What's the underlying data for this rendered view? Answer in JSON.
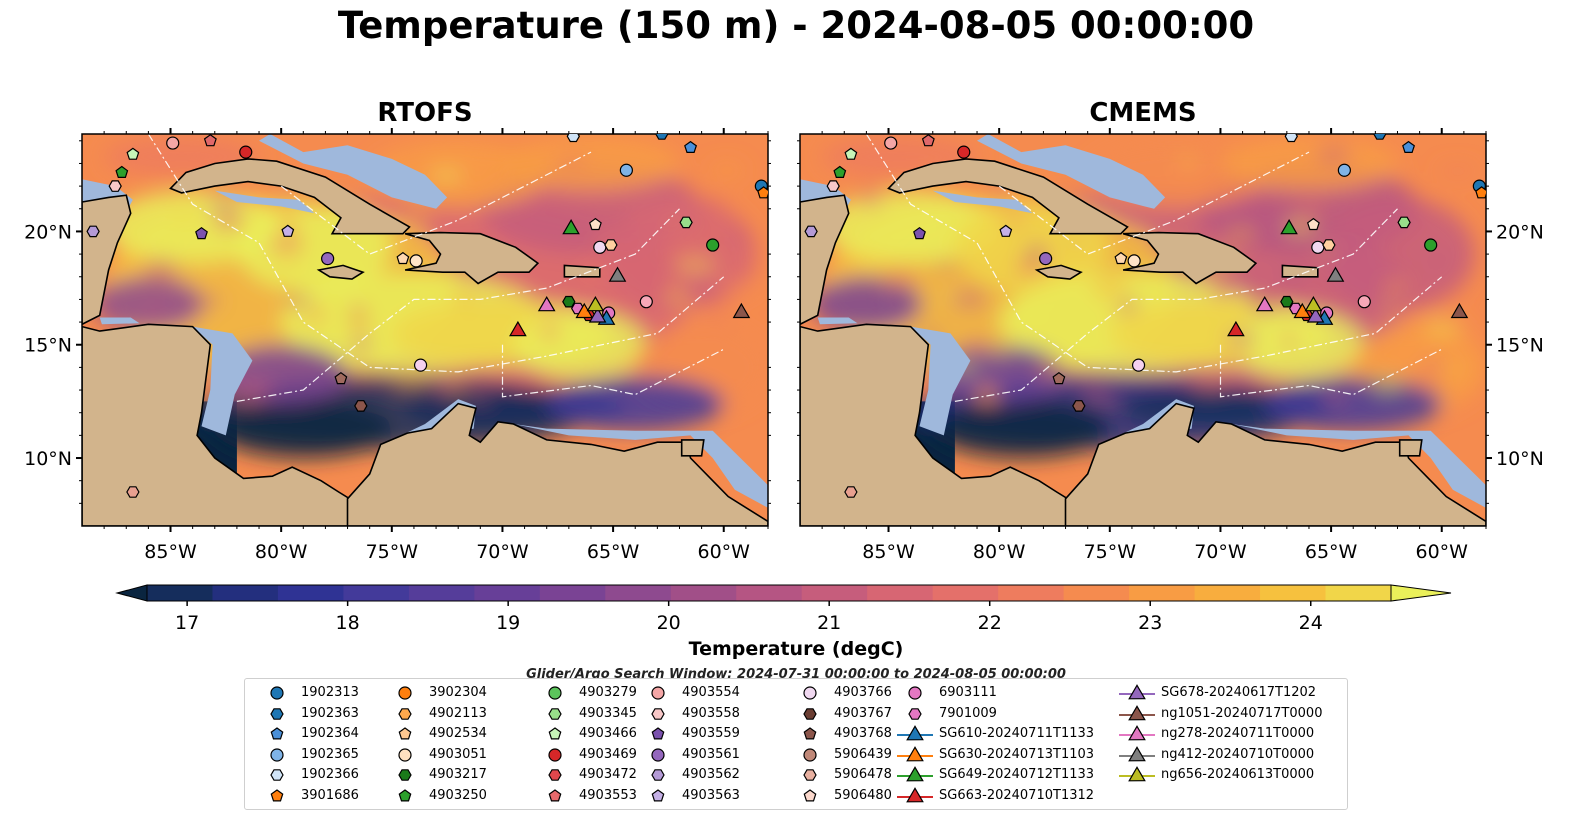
{
  "title": "Temperature (150 m) - 2024-08-05 00:00:00",
  "panels": [
    {
      "name": "rtofs",
      "title": "RTOFS"
    },
    {
      "name": "cmems",
      "title": "CMEMS"
    }
  ],
  "chart_data": {
    "type": "heatmap",
    "variable": "Temperature",
    "depth": "150 m",
    "time": "2024-08-05 00:00:00",
    "x_axis": {
      "ticks": [
        "85°W",
        "80°W",
        "75°W",
        "70°W",
        "65°W",
        "60°W"
      ],
      "tick_values": [
        -85,
        -80,
        -75,
        -70,
        -65,
        -60
      ],
      "range": [
        -89,
        -58
      ]
    },
    "y_axis": {
      "ticks": [
        "10°N",
        "15°N",
        "20°N"
      ],
      "tick_values": [
        10,
        15,
        20
      ],
      "range": [
        7,
        24.3
      ]
    },
    "colorbar": {
      "label": "Temperature (degC)",
      "range": [
        17,
        24.5
      ],
      "ticks": [
        "17",
        "18",
        "19",
        "20",
        "21",
        "22",
        "23",
        "24"
      ],
      "tick_values": [
        17,
        18,
        19,
        20,
        21,
        22,
        23,
        24
      ],
      "extend": "both",
      "colors": [
        "#0a2540",
        "#152d5c",
        "#232f7e",
        "#2f3394",
        "#433a9a",
        "#553d9a",
        "#673f98",
        "#7a4394",
        "#8e4a8f",
        "#a14f88",
        "#b55583",
        "#c65d7c",
        "#d76673",
        "#e4706a",
        "#ee7c5e",
        "#f58b4f",
        "#f89c44",
        "#f8ad3e",
        "#f6c13e",
        "#f1d649",
        "#eaf05a"
      ]
    },
    "regions": {
      "land": "#d2b48c",
      "shelf": "#9fb8dc",
      "deep_cold": "#0a2540"
    },
    "search_window": "Glider/Argo Search Window: 2024-07-31 00:00:00 to 2024-08-05 00:00:00",
    "markers": [
      {
        "id": "1902313",
        "lon": -58.3,
        "lat": 22.0,
        "shape": "circle",
        "color": "#1f77b4"
      },
      {
        "id": "1902363",
        "lon": -62.8,
        "lat": 24.3,
        "shape": "hexagon",
        "color": "#1f77b4"
      },
      {
        "id": "1902364",
        "lon": -61.5,
        "lat": 23.7,
        "shape": "pentagon",
        "color": "#4a90d9"
      },
      {
        "id": "1902365",
        "lon": -64.4,
        "lat": 22.7,
        "shape": "circle",
        "color": "#7fb3e6"
      },
      {
        "id": "1902366",
        "lon": -66.8,
        "lat": 24.2,
        "shape": "hexagon",
        "color": "#d0e4f7"
      },
      {
        "id": "3901686",
        "lon": -58.2,
        "lat": 21.7,
        "shape": "pentagon",
        "color": "#ff7f0e"
      },
      {
        "id": "4903469",
        "lon": -81.6,
        "lat": 23.5,
        "shape": "circle",
        "color": "#d62728"
      },
      {
        "id": "4903279",
        "lon": -60.5,
        "lat": 19.4,
        "shape": "circle",
        "color": "#2ca02c"
      },
      {
        "id": "4903345",
        "lon": -61.7,
        "lat": 20.4,
        "shape": "hexagon",
        "color": "#98df8a"
      },
      {
        "id": "4903466",
        "lon": -86.7,
        "lat": 23.4,
        "shape": "pentagon",
        "color": "#c7f5b8"
      },
      {
        "id": "4903250",
        "lon": -87.2,
        "lat": 22.6,
        "shape": "pentagon",
        "color": "#2ca02c"
      },
      {
        "id": "4903553",
        "lon": -83.2,
        "lat": 24.0,
        "shape": "pentagon",
        "color": "#e0686a"
      },
      {
        "id": "4903554",
        "lon": -84.9,
        "lat": 23.9,
        "shape": "circle",
        "color": "#f4a6a6"
      },
      {
        "id": "4903558",
        "lon": -87.5,
        "lat": 22.0,
        "shape": "hexagon",
        "color": "#f8c8c8"
      },
      {
        "id": "4903559",
        "lon": -83.6,
        "lat": 19.9,
        "shape": "pentagon",
        "color": "#7b52ae"
      },
      {
        "id": "4903561",
        "lon": -77.9,
        "lat": 18.8,
        "shape": "circle",
        "color": "#9467bd"
      },
      {
        "id": "4903562",
        "lon": -88.5,
        "lat": 20.0,
        "shape": "hexagon",
        "color": "#b49ad6"
      },
      {
        "id": "4903563",
        "lon": -79.7,
        "lat": 20.0,
        "shape": "pentagon",
        "color": "#c5b0e6"
      },
      {
        "id": "4903766",
        "lon": -65.6,
        "lat": 19.3,
        "shape": "circle",
        "color": "#f0d8f0"
      },
      {
        "id": "4903767",
        "lon": -76.4,
        "lat": 12.3,
        "shape": "hexagon",
        "color": "#8c564b"
      },
      {
        "id": "4903768",
        "lon": -77.3,
        "lat": 13.5,
        "shape": "pentagon",
        "color": "#a06a5e"
      },
      {
        "id": "5906439",
        "lon": -63.5,
        "lat": 16.9,
        "shape": "circle",
        "color": "#f7a8b8"
      },
      {
        "id": "5906478",
        "lon": -86.7,
        "lat": 8.5,
        "shape": "hexagon",
        "color": "#e8a090"
      },
      {
        "id": "5906480",
        "lon": -65.8,
        "lat": 20.3,
        "shape": "pentagon",
        "color": "#ffe0c8"
      },
      {
        "id": "6903111",
        "lon": -65.2,
        "lat": 16.4,
        "shape": "circle",
        "color": "#e377c2"
      },
      {
        "id": "7901009",
        "lon": -66.6,
        "lat": 16.6,
        "shape": "hexagon",
        "color": "#e377c2"
      },
      {
        "id": "3902304",
        "lon": -73.7,
        "lat": 14.1,
        "shape": "circle",
        "color": "#f5d0f0"
      },
      {
        "id": "4902113",
        "lon": -65.1,
        "lat": 19.4,
        "shape": "hexagon",
        "color": "#ffd0a0"
      },
      {
        "id": "4902534",
        "lon": -74.5,
        "lat": 18.8,
        "shape": "pentagon",
        "color": "#ffd8b0"
      },
      {
        "id": "4903051",
        "lon": -73.9,
        "lat": 18.7,
        "shape": "circle",
        "color": "#ffe4c8"
      },
      {
        "id": "4903217",
        "lon": -67.0,
        "lat": 16.9,
        "shape": "hexagon",
        "color": "#1a7a1a"
      },
      {
        "id": "4903472",
        "lon": -66.1,
        "lat": 16.3,
        "shape": "hexagon",
        "color": "#d62728"
      },
      {
        "id": "SG610-20240711T1133",
        "lon": -65.3,
        "lat": 16.2,
        "shape": "triangle",
        "color": "#1f77b4"
      },
      {
        "id": "SG630-20240713T1103",
        "lon": -66.3,
        "lat": 16.5,
        "shape": "triangle",
        "color": "#ff7f0e"
      },
      {
        "id": "SG649-20240712T1133",
        "lon": -66.9,
        "lat": 20.2,
        "shape": "triangle",
        "color": "#2ca02c"
      },
      {
        "id": "SG663-20240710T1312",
        "lon": -69.3,
        "lat": 15.7,
        "shape": "triangle",
        "color": "#d62728"
      },
      {
        "id": "SG678-20240617T1202",
        "lon": -65.7,
        "lat": 16.3,
        "shape": "triangle",
        "color": "#9467bd"
      },
      {
        "id": "ng1051-20240717T0000",
        "lon": -59.2,
        "lat": 16.5,
        "shape": "triangle",
        "color": "#8c564b"
      },
      {
        "id": "ng278-20240711T0000",
        "lon": -68.0,
        "lat": 16.8,
        "shape": "triangle",
        "color": "#e377c2"
      },
      {
        "id": "ng412-20240710T0000",
        "lon": -64.8,
        "lat": 18.1,
        "shape": "triangle",
        "color": "#7f7f7f"
      },
      {
        "id": "ng656-20240613T0000",
        "lon": -65.8,
        "lat": 16.8,
        "shape": "triangle",
        "color": "#bcbd22"
      }
    ]
  },
  "legend": {
    "items": [
      {
        "label": "1902313",
        "shape": "circle",
        "color": "#1f77b4"
      },
      {
        "label": "1902363",
        "shape": "hexagon",
        "color": "#1f77b4"
      },
      {
        "label": "1902364",
        "shape": "pentagon",
        "color": "#4a90d9"
      },
      {
        "label": "1902365",
        "shape": "circle",
        "color": "#7fb3e6"
      },
      {
        "label": "1902366",
        "shape": "hexagon",
        "color": "#d0e4f7"
      },
      {
        "label": "3901686",
        "shape": "pentagon",
        "color": "#ff7f0e"
      },
      {
        "label": "3902304",
        "shape": "circle",
        "color": "#ff7f0e"
      },
      {
        "label": "4902113",
        "shape": "hexagon",
        "color": "#ffa94d"
      },
      {
        "label": "4902534",
        "shape": "pentagon",
        "color": "#ffc890"
      },
      {
        "label": "4903051",
        "shape": "circle",
        "color": "#ffe0c0"
      },
      {
        "label": "4903217",
        "shape": "hexagon",
        "color": "#1a7a1a"
      },
      {
        "label": "4903250",
        "shape": "pentagon",
        "color": "#2ca02c"
      },
      {
        "label": "4903279",
        "shape": "circle",
        "color": "#5cc45c"
      },
      {
        "label": "4903345",
        "shape": "hexagon",
        "color": "#98df8a"
      },
      {
        "label": "4903466",
        "shape": "pentagon",
        "color": "#c7f5b8"
      },
      {
        "label": "4903469",
        "shape": "circle",
        "color": "#d62728"
      },
      {
        "label": "4903472",
        "shape": "hexagon",
        "color": "#e0474c"
      },
      {
        "label": "4903553",
        "shape": "pentagon",
        "color": "#e86a6c"
      },
      {
        "label": "4903554",
        "shape": "circle",
        "color": "#f4a6a6"
      },
      {
        "label": "4903558",
        "shape": "hexagon",
        "color": "#f8c8c8"
      },
      {
        "label": "4903559",
        "shape": "pentagon",
        "color": "#7b52ae"
      },
      {
        "label": "4903561",
        "shape": "circle",
        "color": "#9467bd"
      },
      {
        "label": "4903562",
        "shape": "hexagon",
        "color": "#b49ad6"
      },
      {
        "label": "4903563",
        "shape": "pentagon",
        "color": "#c5b0e6"
      },
      {
        "label": "4903766",
        "shape": "circle",
        "color": "#f0d8f0"
      },
      {
        "label": "4903767",
        "shape": "hexagon",
        "color": "#6b3e33"
      },
      {
        "label": "4903768",
        "shape": "pentagon",
        "color": "#8c564b"
      },
      {
        "label": "5906439",
        "shape": "circle",
        "color": "#c08878"
      },
      {
        "label": "5906478",
        "shape": "hexagon",
        "color": "#e8b0a0"
      },
      {
        "label": "5906480",
        "shape": "pentagon",
        "color": "#fbd8cc"
      },
      {
        "label": "6903111",
        "shape": "circle",
        "color": "#e377c2"
      },
      {
        "label": "7901009",
        "shape": "hexagon",
        "color": "#e377c2"
      },
      {
        "label": "SG610-20240711T1133",
        "shape": "triangle",
        "color": "#1f77b4"
      },
      {
        "label": "SG630-20240713T1103",
        "shape": "triangle",
        "color": "#ff7f0e"
      },
      {
        "label": "SG649-20240712T1133",
        "shape": "triangle",
        "color": "#2ca02c"
      },
      {
        "label": "SG663-20240710T1312",
        "shape": "triangle",
        "color": "#d62728"
      },
      {
        "label": "SG678-20240617T1202",
        "shape": "triangle",
        "color": "#9467bd"
      },
      {
        "label": "ng1051-20240717T0000",
        "shape": "triangle",
        "color": "#8c564b"
      },
      {
        "label": "ng278-20240711T0000",
        "shape": "triangle",
        "color": "#e377c2"
      },
      {
        "label": "ng412-20240710T0000",
        "shape": "triangle",
        "color": "#7f7f7f"
      },
      {
        "label": "ng656-20240613T0000",
        "shape": "triangle",
        "color": "#bcbd22"
      }
    ]
  }
}
